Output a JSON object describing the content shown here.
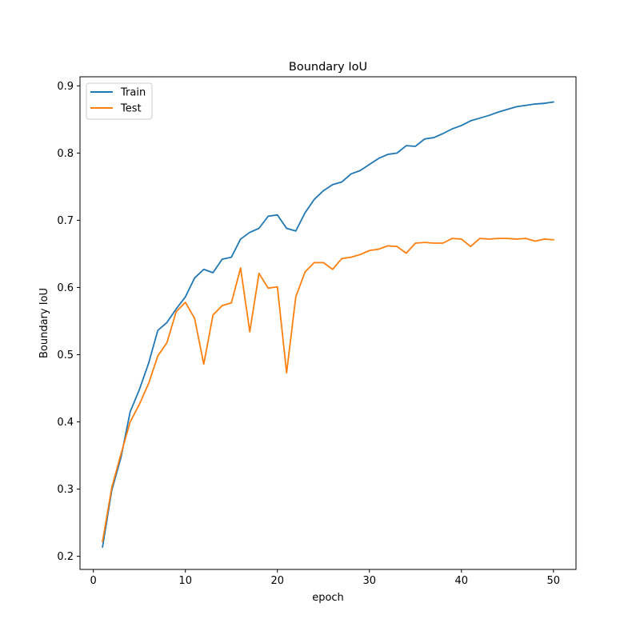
{
  "chart_data": {
    "type": "line",
    "title": "Boundary IoU",
    "xlabel": "epoch",
    "ylabel": "Boundary IoU",
    "xlim": [
      -1.45,
      52.45
    ],
    "ylim": [
      0.1805,
      0.9135
    ],
    "xticks": [
      0,
      10,
      20,
      30,
      40,
      50
    ],
    "xtick_labels": [
      "0",
      "10",
      "20",
      "30",
      "40",
      "50"
    ],
    "yticks": [
      0.2,
      0.3,
      0.4,
      0.5,
      0.6,
      0.7,
      0.8,
      0.9
    ],
    "ytick_labels": [
      "0.2",
      "0.3",
      "0.4",
      "0.5",
      "0.6",
      "0.7",
      "0.8",
      "0.9"
    ],
    "grid": false,
    "legend": "upper-left",
    "x": [
      1,
      2,
      3,
      4,
      5,
      6,
      7,
      8,
      9,
      10,
      11,
      12,
      13,
      14,
      15,
      16,
      17,
      18,
      19,
      20,
      21,
      22,
      23,
      24,
      25,
      26,
      27,
      28,
      29,
      30,
      31,
      32,
      33,
      34,
      35,
      36,
      37,
      38,
      39,
      40,
      41,
      42,
      43,
      44,
      45,
      46,
      47,
      48,
      49,
      50
    ],
    "series": [
      {
        "name": "Train",
        "color": "#1f77b4",
        "values": [
          0.214,
          0.298,
          0.347,
          0.415,
          0.448,
          0.487,
          0.536,
          0.548,
          0.568,
          0.586,
          0.614,
          0.627,
          0.622,
          0.642,
          0.645,
          0.672,
          0.682,
          0.688,
          0.706,
          0.708,
          0.688,
          0.684,
          0.711,
          0.731,
          0.744,
          0.753,
          0.757,
          0.769,
          0.774,
          0.783,
          0.792,
          0.798,
          0.8,
          0.811,
          0.81,
          0.821,
          0.823,
          0.829,
          0.836,
          0.841,
          0.848,
          0.852,
          0.856,
          0.861,
          0.865,
          0.869,
          0.871,
          0.873,
          0.874,
          0.876
        ]
      },
      {
        "name": "Test",
        "color": "#ff7f0e",
        "values": [
          0.222,
          0.302,
          0.352,
          0.4,
          0.426,
          0.457,
          0.498,
          0.518,
          0.564,
          0.578,
          0.554,
          0.486,
          0.559,
          0.573,
          0.577,
          0.629,
          0.534,
          0.621,
          0.599,
          0.601,
          0.473,
          0.586,
          0.623,
          0.637,
          0.637,
          0.627,
          0.643,
          0.645,
          0.649,
          0.655,
          0.657,
          0.662,
          0.661,
          0.651,
          0.666,
          0.667,
          0.666,
          0.666,
          0.673,
          0.672,
          0.661,
          0.673,
          0.672,
          0.673,
          0.673,
          0.672,
          0.673,
          0.669,
          0.672,
          0.671
        ]
      }
    ]
  }
}
